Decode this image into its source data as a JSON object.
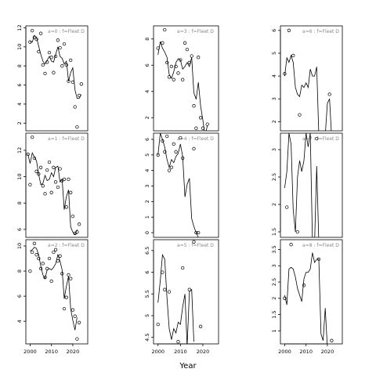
{
  "xlabel": "Year",
  "chart_data": [
    {
      "type": "scatter",
      "label": "a=0  :  f=Fleet D",
      "xlim": [
        1998,
        2027
      ],
      "ylim": [
        1.2,
        12.2
      ],
      "yticks": [
        2,
        4,
        6,
        8,
        10,
        12
      ],
      "xticks": [],
      "obs": [
        [
          2000,
          10.5
        ],
        [
          2001,
          11.7
        ],
        [
          2002,
          11.0
        ],
        [
          2003,
          10.8
        ],
        [
          2004,
          9.5
        ],
        [
          2005,
          11.4
        ],
        [
          2006,
          8.1
        ],
        [
          2007,
          7.2
        ],
        [
          2008,
          8.4
        ],
        [
          2009,
          9.4
        ],
        [
          2010,
          8.9
        ],
        [
          2011,
          7.3
        ],
        [
          2012,
          9.0
        ],
        [
          2013,
          10.7
        ],
        [
          2014,
          9.9
        ],
        [
          2015,
          8.0
        ],
        [
          2016,
          10.3
        ],
        [
          2017,
          8.1
        ],
        [
          2018,
          6.4
        ],
        [
          2019,
          8.6
        ],
        [
          2020,
          6.3
        ],
        [
          2021,
          3.7
        ],
        [
          2022,
          1.6
        ],
        [
          2023,
          4.9
        ],
        [
          2024,
          6.1
        ]
      ],
      "fit": [
        [
          2000,
          10.5
        ],
        [
          2001,
          10.5
        ],
        [
          2002,
          11.2
        ],
        [
          2003,
          11.0
        ],
        [
          2004,
          10.1
        ],
        [
          2005,
          9.2
        ],
        [
          2006,
          8.5
        ],
        [
          2007,
          8.2
        ],
        [
          2008,
          8.6
        ],
        [
          2009,
          9.0
        ],
        [
          2010,
          8.5
        ],
        [
          2011,
          8.4
        ],
        [
          2012,
          9.2
        ],
        [
          2013,
          10.0
        ],
        [
          2014,
          9.0
        ],
        [
          2015,
          8.8
        ],
        [
          2016,
          8.2
        ],
        [
          2017,
          8.5
        ],
        [
          2018,
          6.4
        ],
        [
          2019,
          7.3
        ],
        [
          2020,
          7.8
        ],
        [
          2021,
          5.5
        ],
        [
          2022,
          4.6
        ],
        [
          2023,
          4.6
        ],
        [
          2024,
          5.0
        ]
      ]
    },
    {
      "type": "scatter",
      "label": "a=3  :  f=Fleet D",
      "xlim": [
        1998,
        2027
      ],
      "ylim": [
        1.0,
        9.0
      ],
      "yticks": [
        2,
        4,
        6,
        8
      ],
      "xticks": [],
      "obs": [
        [
          2000,
          7.3
        ],
        [
          2002,
          7.7
        ],
        [
          2003,
          8.7
        ],
        [
          2004,
          6.2
        ],
        [
          2005,
          5.1
        ],
        [
          2006,
          5.9
        ],
        [
          2007,
          4.9
        ],
        [
          2008,
          5.9
        ],
        [
          2009,
          5.4
        ],
        [
          2010,
          6.4
        ],
        [
          2011,
          4.9
        ],
        [
          2012,
          7.7
        ],
        [
          2013,
          7.2
        ],
        [
          2014,
          6.2
        ],
        [
          2015,
          6.7
        ],
        [
          2016,
          2.9
        ],
        [
          2017,
          1.2
        ],
        [
          2018,
          6.6
        ],
        [
          2019,
          2.0
        ],
        [
          2020,
          1.2
        ],
        [
          2021,
          0.7
        ],
        [
          2022,
          1.5
        ],
        [
          2023,
          0.3
        ]
      ],
      "fit": [
        [
          2000,
          6.8
        ],
        [
          2001,
          7.8
        ],
        [
          2002,
          7.3
        ],
        [
          2003,
          7.0
        ],
        [
          2004,
          6.6
        ],
        [
          2005,
          5.3
        ],
        [
          2006,
          5.0
        ],
        [
          2007,
          5.5
        ],
        [
          2008,
          6.2
        ],
        [
          2009,
          6.5
        ],
        [
          2010,
          6.4
        ],
        [
          2011,
          5.7
        ],
        [
          2012,
          5.9
        ],
        [
          2013,
          6.2
        ],
        [
          2014,
          5.9
        ],
        [
          2015,
          6.6
        ],
        [
          2016,
          3.9
        ],
        [
          2017,
          3.4
        ],
        [
          2018,
          4.7
        ],
        [
          2019,
          2.9
        ],
        [
          2020,
          1.8
        ],
        [
          2021,
          0.6
        ],
        [
          2022,
          1.4
        ]
      ]
    },
    {
      "type": "scatter",
      "label": "a=6  :  f=Fleet D",
      "xlim": [
        1998,
        2027
      ],
      "ylim": [
        1.6,
        6.2
      ],
      "yticks": [
        2,
        3,
        4,
        5,
        6
      ],
      "xticks": [],
      "obs": [
        [
          2000,
          4.1
        ],
        [
          2002,
          6.0
        ],
        [
          2004,
          4.9
        ],
        [
          2007,
          2.3
        ],
        [
          2020,
          1.5
        ],
        [
          2021,
          3.2
        ]
      ],
      "fit": [
        [
          2000,
          4.0
        ],
        [
          2001,
          4.8
        ],
        [
          2002,
          4.6
        ],
        [
          2003,
          4.9
        ],
        [
          2004,
          4.6
        ],
        [
          2005,
          3.5
        ],
        [
          2006,
          3.2
        ],
        [
          2007,
          3.1
        ],
        [
          2008,
          3.6
        ],
        [
          2009,
          3.5
        ],
        [
          2010,
          3.7
        ],
        [
          2011,
          3.5
        ],
        [
          2012,
          4.3
        ],
        [
          2013,
          4.0
        ],
        [
          2014,
          4.0
        ],
        [
          2015,
          4.4
        ],
        [
          2016,
          1.4
        ],
        [
          2017,
          1.2
        ],
        [
          2018,
          1.3
        ],
        [
          2019,
          1.4
        ],
        [
          2020,
          2.8
        ],
        [
          2021,
          3.0
        ],
        [
          2022,
          1.3
        ]
      ]
    },
    {
      "type": "scatter",
      "label": "a=1  :  f=Fleet D",
      "xlim": [
        1998,
        2027
      ],
      "ylim": [
        5.4,
        13.3
      ],
      "yticks": [
        6,
        8,
        10,
        12
      ],
      "xticks": [],
      "obs": [
        [
          1999,
          11.7
        ],
        [
          2000,
          9.4
        ],
        [
          2001,
          13.0
        ],
        [
          2002,
          11.4
        ],
        [
          2003,
          10.4
        ],
        [
          2004,
          10.2
        ],
        [
          2005,
          10.7
        ],
        [
          2006,
          9.3
        ],
        [
          2007,
          8.7
        ],
        [
          2008,
          10.5
        ],
        [
          2009,
          11.1
        ],
        [
          2010,
          8.8
        ],
        [
          2011,
          10.7
        ],
        [
          2012,
          9.6
        ],
        [
          2013,
          9.2
        ],
        [
          2014,
          10.6
        ],
        [
          2015,
          9.7
        ],
        [
          2016,
          9.8
        ],
        [
          2017,
          7.7
        ],
        [
          2018,
          9.8
        ],
        [
          2019,
          8.8
        ],
        [
          2020,
          7.0
        ],
        [
          2021,
          5.7
        ],
        [
          2022,
          5.8
        ],
        [
          2023,
          6.4
        ]
      ],
      "fit": [
        [
          1999,
          11.7
        ],
        [
          2000,
          11.0
        ],
        [
          2001,
          11.8
        ],
        [
          2002,
          11.5
        ],
        [
          2003,
          11.2
        ],
        [
          2004,
          10.2
        ],
        [
          2005,
          9.4
        ],
        [
          2006,
          9.5
        ],
        [
          2007,
          10.1
        ],
        [
          2008,
          9.7
        ],
        [
          2009,
          9.8
        ],
        [
          2010,
          10.3
        ],
        [
          2011,
          10.0
        ],
        [
          2012,
          10.7
        ],
        [
          2013,
          10.8
        ],
        [
          2014,
          9.6
        ],
        [
          2015,
          9.8
        ],
        [
          2016,
          7.5
        ],
        [
          2017,
          8.5
        ],
        [
          2018,
          9.0
        ],
        [
          2019,
          6.2
        ],
        [
          2020,
          5.8
        ],
        [
          2021,
          5.6
        ],
        [
          2022,
          6.0
        ]
      ]
    },
    {
      "type": "scatter",
      "label": "a=4  :  f=Fleet D",
      "xlim": [
        1998,
        2027
      ],
      "ylim": [
        -0.3,
        6.4
      ],
      "yticks": [
        0,
        1,
        2,
        3,
        4,
        5,
        6
      ],
      "xticks": [],
      "obs": [
        [
          2000,
          5.0
        ],
        [
          2002,
          5.9
        ],
        [
          2003,
          5.2
        ],
        [
          2004,
          6.2
        ],
        [
          2005,
          4.0
        ],
        [
          2006,
          4.2
        ],
        [
          2007,
          5.7
        ],
        [
          2008,
          5.2
        ],
        [
          2010,
          6.1
        ],
        [
          2011,
          4.8
        ],
        [
          2016,
          5.4
        ],
        [
          2017,
          0.0
        ],
        [
          2018,
          0.0
        ]
      ],
      "fit": [
        [
          2000,
          5.0
        ],
        [
          2001,
          6.4
        ],
        [
          2002,
          6.0
        ],
        [
          2003,
          5.5
        ],
        [
          2004,
          4.7
        ],
        [
          2005,
          4.2
        ],
        [
          2006,
          4.7
        ],
        [
          2007,
          4.5
        ],
        [
          2008,
          4.9
        ],
        [
          2009,
          5.1
        ],
        [
          2010,
          5.7
        ],
        [
          2011,
          4.9
        ],
        [
          2012,
          2.3
        ],
        [
          2013,
          3.1
        ],
        [
          2014,
          3.5
        ],
        [
          2015,
          0.9
        ],
        [
          2016,
          0.4
        ],
        [
          2017,
          0.0
        ],
        [
          2018,
          -0.3
        ]
      ]
    },
    {
      "type": "scatter",
      "label": "a=7  :  f=Fleet D",
      "xlim": [
        1998,
        2027
      ],
      "ylim": [
        1.4,
        3.3
      ],
      "yticks": [
        1.5,
        2.0,
        2.5,
        3.0
      ],
      "xticks": [],
      "obs": [
        [
          2001,
          1.95
        ],
        [
          2006,
          1.5
        ],
        [
          2015,
          3.2
        ]
      ],
      "fit": [
        [
          2000,
          2.3
        ],
        [
          2001,
          2.6
        ],
        [
          2002,
          3.3
        ],
        [
          2003,
          3.1
        ],
        [
          2004,
          1.9
        ],
        [
          2005,
          1.5
        ],
        [
          2006,
          2.5
        ],
        [
          2007,
          2.8
        ],
        [
          2008,
          2.6
        ],
        [
          2009,
          2.8
        ],
        [
          2010,
          3.3
        ],
        [
          2011,
          3.05
        ],
        [
          2012,
          3.3
        ],
        [
          2013,
          1.3
        ],
        [
          2014,
          1.3
        ],
        [
          2015,
          2.7
        ],
        [
          2016,
          1.3
        ]
      ]
    },
    {
      "type": "scatter",
      "label": "a=2  :  f=Fleet D",
      "xlim": [
        1998,
        2027
      ],
      "ylim": [
        2.2,
        10.5
      ],
      "yticks": [
        4,
        6,
        8,
        10
      ],
      "xticks": [
        2000,
        2010,
        2020
      ],
      "xticklabels": [
        "2000",
        "2010",
        "2020"
      ],
      "obs": [
        [
          2000,
          8.0
        ],
        [
          2001,
          9.5
        ],
        [
          2002,
          10.2
        ],
        [
          2003,
          9.3
        ],
        [
          2004,
          9.0
        ],
        [
          2005,
          8.2
        ],
        [
          2006,
          8.6
        ],
        [
          2007,
          7.5
        ],
        [
          2008,
          8.2
        ],
        [
          2009,
          9.0
        ],
        [
          2010,
          7.2
        ],
        [
          2011,
          9.5
        ],
        [
          2012,
          9.7
        ],
        [
          2013,
          8.8
        ],
        [
          2014,
          9.2
        ],
        [
          2015,
          7.8
        ],
        [
          2016,
          5.0
        ],
        [
          2017,
          5.9
        ],
        [
          2018,
          7.7
        ],
        [
          2019,
          7.4
        ],
        [
          2020,
          4.9
        ],
        [
          2021,
          4.4
        ],
        [
          2022,
          2.6
        ],
        [
          2023,
          3.9
        ]
      ],
      "fit": [
        [
          2000,
          9.6
        ],
        [
          2001,
          9.7
        ],
        [
          2002,
          9.9
        ],
        [
          2003,
          9.8
        ],
        [
          2004,
          9.3
        ],
        [
          2005,
          8.4
        ],
        [
          2006,
          7.7
        ],
        [
          2007,
          7.4
        ],
        [
          2008,
          8.1
        ],
        [
          2009,
          8.2
        ],
        [
          2010,
          8.1
        ],
        [
          2011,
          8.3
        ],
        [
          2012,
          8.6
        ],
        [
          2013,
          9.3
        ],
        [
          2014,
          8.8
        ],
        [
          2015,
          8.1
        ],
        [
          2016,
          5.8
        ],
        [
          2017,
          6.8
        ],
        [
          2018,
          7.6
        ],
        [
          2019,
          5.0
        ],
        [
          2020,
          4.1
        ],
        [
          2021,
          3.3
        ],
        [
          2022,
          4.3
        ]
      ]
    },
    {
      "type": "scatter",
      "label": "a=5  :  f=Fleet D",
      "xlim": [
        1998,
        2027
      ],
      "ylim": [
        4.35,
        6.75
      ],
      "yticks": [
        4.5,
        5.0,
        5.5,
        6.0,
        6.5
      ],
      "xticks": [
        2000,
        2010,
        2020
      ],
      "xticklabels": [
        "2000",
        "2010",
        "2020"
      ],
      "obs": [
        [
          2000,
          4.8
        ],
        [
          2002,
          6.0
        ],
        [
          2003,
          5.6
        ],
        [
          2005,
          5.55
        ],
        [
          2009,
          4.4
        ],
        [
          2011,
          6.1
        ],
        [
          2014,
          5.6
        ],
        [
          2016,
          6.7
        ],
        [
          2019,
          4.75
        ]
      ],
      "fit": [
        [
          2000,
          5.3
        ],
        [
          2001,
          5.8
        ],
        [
          2002,
          6.4
        ],
        [
          2003,
          6.3
        ],
        [
          2004,
          5.4
        ],
        [
          2005,
          4.7
        ],
        [
          2006,
          4.45
        ],
        [
          2007,
          4.7
        ],
        [
          2008,
          4.6
        ],
        [
          2009,
          4.85
        ],
        [
          2010,
          4.8
        ],
        [
          2011,
          5.2
        ],
        [
          2012,
          5.5
        ],
        [
          2013,
          4.3
        ],
        [
          2014,
          5.55
        ],
        [
          2015,
          5.6
        ],
        [
          2016,
          4.4
        ]
      ]
    },
    {
      "type": "scatter",
      "label": "a=8  :  f=Fleet D",
      "xlim": [
        1998,
        2027
      ],
      "ylim": [
        0.6,
        3.8
      ],
      "yticks": [
        1.0,
        1.5,
        2.0,
        2.5,
        3.0,
        3.5
      ],
      "xticks": [
        2000,
        2010,
        2020
      ],
      "xticklabels": [
        "2000",
        "2010",
        "2020"
      ],
      "obs": [
        [
          2000,
          2.0
        ],
        [
          2003,
          3.65
        ],
        [
          2009,
          2.4
        ],
        [
          2016,
          3.2
        ],
        [
          2022,
          0.7
        ]
      ],
      "fit": [
        [
          2000,
          2.1
        ],
        [
          2001,
          1.8
        ],
        [
          2002,
          2.9
        ],
        [
          2003,
          2.95
        ],
        [
          2004,
          2.9
        ],
        [
          2005,
          2.65
        ],
        [
          2006,
          2.3
        ],
        [
          2007,
          2.1
        ],
        [
          2008,
          1.9
        ],
        [
          2009,
          2.6
        ],
        [
          2010,
          2.8
        ],
        [
          2011,
          2.8
        ],
        [
          2012,
          2.9
        ],
        [
          2013,
          3.4
        ],
        [
          2014,
          3.1
        ],
        [
          2015,
          3.2
        ],
        [
          2016,
          3.2
        ],
        [
          2017,
          0.9
        ],
        [
          2018,
          0.7
        ],
        [
          2019,
          1.7
        ],
        [
          2020,
          0.5
        ]
      ]
    }
  ]
}
